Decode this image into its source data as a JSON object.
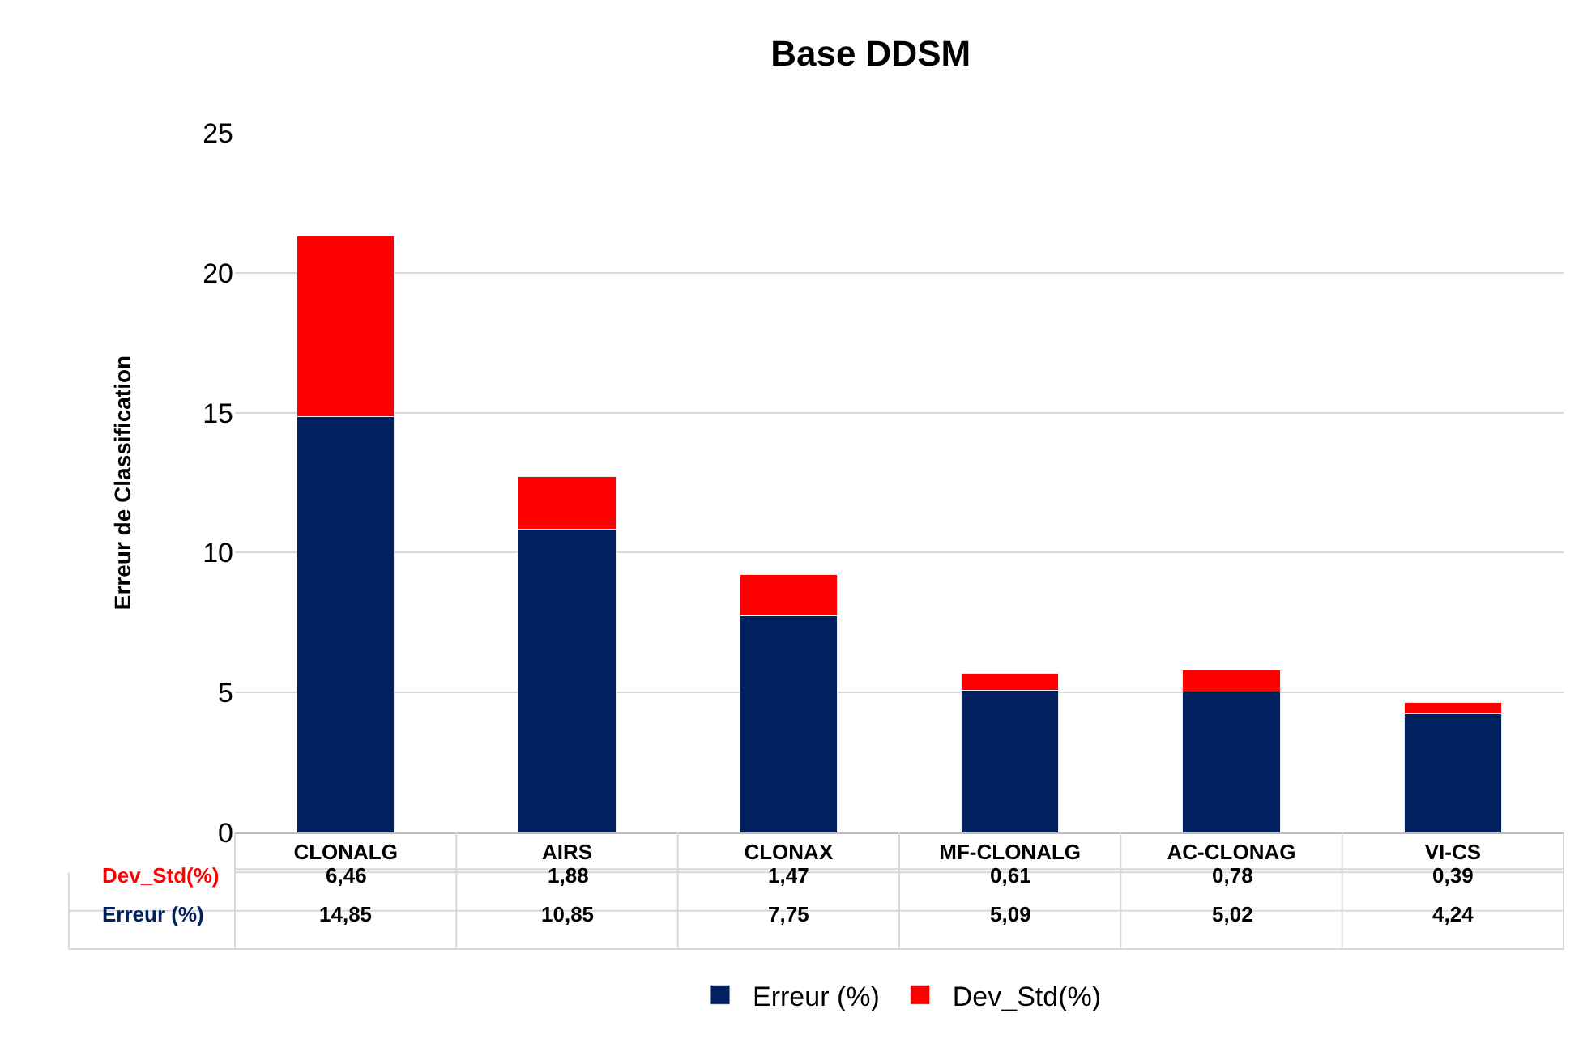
{
  "chart_data": {
    "type": "bar",
    "title": "Base DDSM",
    "ylabel": "Erreur de Classification",
    "categories": [
      "CLONALG",
      "AIRS",
      "CLONAX",
      "MF-CLONALG",
      "AC-CLONAG",
      "VI-CS"
    ],
    "stacked": true,
    "series": [
      {
        "name": "Erreur (%)",
        "color": "#002060",
        "values": [
          14.85,
          10.85,
          7.75,
          5.09,
          5.02,
          4.24
        ],
        "value_labels": [
          "14,85",
          "10,85",
          "7,75",
          "5,09",
          "5,02",
          "4,24"
        ]
      },
      {
        "name": "Dev_Std(%)",
        "color": "#ff0000",
        "values": [
          6.46,
          1.88,
          1.47,
          0.61,
          0.78,
          0.39
        ],
        "value_labels": [
          "6,46",
          "1,88",
          "1,47",
          "0,61",
          "0,78",
          "0,39"
        ]
      }
    ],
    "ylim": [
      0,
      25
    ],
    "yticks": [
      0,
      5,
      10,
      15,
      20,
      25
    ],
    "grid": "y",
    "legend": "bottom"
  }
}
